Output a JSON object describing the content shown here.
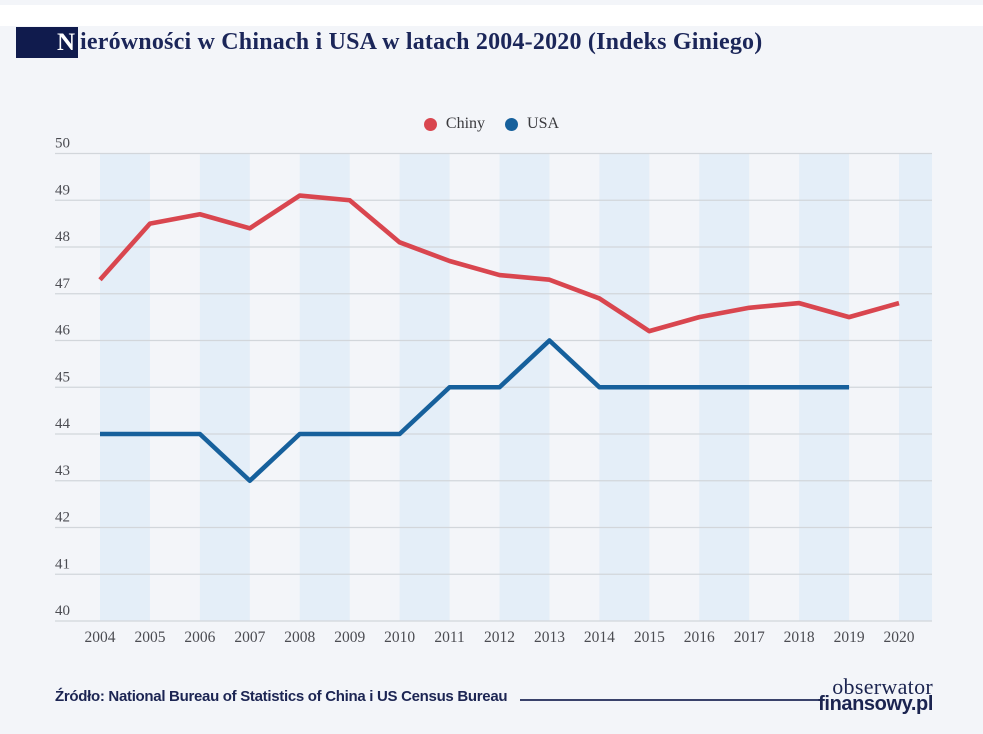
{
  "title": {
    "highlight": "N",
    "rest": "ierówności w Chinach i USA w latach 2004-2020 (Indeks Giniego)"
  },
  "chart_data": {
    "type": "line",
    "x": [
      2004,
      2005,
      2006,
      2007,
      2008,
      2009,
      2010,
      2011,
      2012,
      2013,
      2014,
      2015,
      2016,
      2017,
      2018,
      2019,
      2020
    ],
    "series": [
      {
        "name": "Chiny",
        "color": "#d9464f",
        "values": [
          47.3,
          48.5,
          48.7,
          48.4,
          49.1,
          49.0,
          48.1,
          47.7,
          47.4,
          47.3,
          46.9,
          46.2,
          46.5,
          46.7,
          46.8,
          46.5,
          46.8
        ]
      },
      {
        "name": "USA",
        "color": "#16609c",
        "values": [
          44,
          44,
          44,
          43,
          44,
          44,
          44,
          45,
          45,
          46,
          45,
          45,
          45,
          45,
          45,
          45,
          null
        ]
      }
    ],
    "ylim": [
      40,
      50
    ],
    "ytick_step": 1,
    "grid": "horizontal",
    "gridline_color": "#d2d6db",
    "band_color": "#e4eef8",
    "plot_style": "alternating vertical year bands",
    "legend_position": "top-center",
    "markers": "none"
  },
  "footer": {
    "source": "Źródło: National Bureau of Statistics of China i US Census Bureau",
    "logo_line1": "obserwator",
    "logo_line2": "finansowy.pl"
  }
}
